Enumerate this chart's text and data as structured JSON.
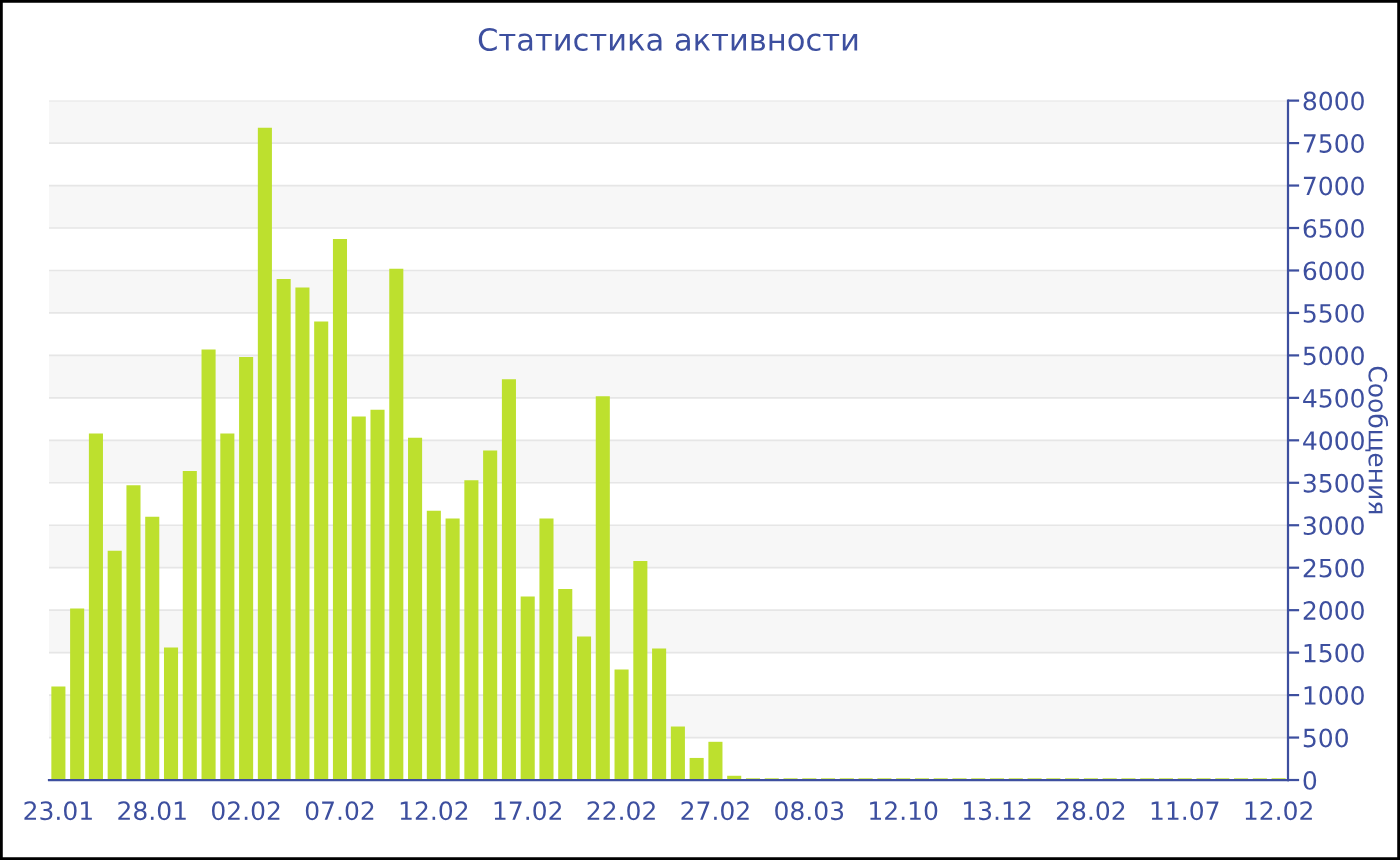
{
  "chart_data": {
    "type": "bar",
    "title": "Статистика активности",
    "ylabel": "Сообщения",
    "categories": [
      "23.01",
      null,
      null,
      null,
      null,
      "28.01",
      null,
      null,
      null,
      null,
      "02.02",
      null,
      null,
      null,
      null,
      "07.02",
      null,
      null,
      null,
      null,
      "12.02",
      null,
      null,
      null,
      null,
      "17.02",
      null,
      null,
      null,
      null,
      "22.02",
      null,
      null,
      null,
      null,
      "27.02",
      null,
      null,
      null,
      null,
      "08.03",
      null,
      null,
      null,
      null,
      "12.10",
      null,
      null,
      null,
      null,
      "13.12",
      null,
      null,
      null,
      null,
      "28.02",
      null,
      null,
      null,
      null,
      "11.07",
      null,
      null,
      null,
      null,
      "12.02"
    ],
    "values": [
      1100,
      2020,
      4080,
      2700,
      3470,
      3100,
      1560,
      3640,
      5070,
      4080,
      4980,
      7680,
      5900,
      5800,
      5400,
      6370,
      4280,
      4360,
      6020,
      4030,
      3170,
      3080,
      3530,
      3880,
      4720,
      2160,
      3080,
      2250,
      1690,
      4520,
      1300,
      2580,
      1550,
      630,
      260,
      450,
      50,
      20,
      20,
      20,
      20,
      20,
      20,
      20,
      20,
      20,
      20,
      20,
      20,
      20,
      20,
      20,
      20,
      20,
      20,
      20,
      20,
      20,
      20,
      20,
      20,
      20,
      20,
      20,
      20,
      20
    ],
    "color": "#bde02e",
    "ylim": [
      0,
      8000
    ],
    "yticks": [
      0,
      500,
      1000,
      1500,
      2000,
      2500,
      3000,
      3500,
      4000,
      4500,
      5000,
      5500,
      6000,
      6500,
      7000,
      7500,
      8000
    ],
    "grid": "y",
    "legend": false
  }
}
